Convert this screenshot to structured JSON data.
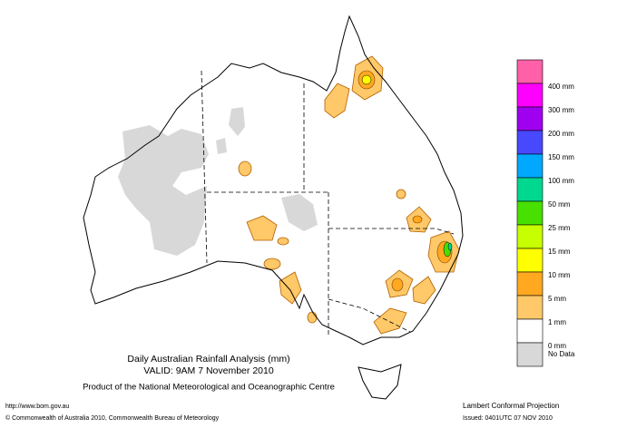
{
  "header": {
    "title": "Daily Australian Rainfall Analysis (mm)",
    "valid": "VALID: 9AM  7 November 2010",
    "product": "Product of the National Meteorological and Oceanographic Centre"
  },
  "legend": {
    "colors": [
      "#ff60a8",
      "#ff00ff",
      "#a000f0",
      "#4848ff",
      "#00a8ff",
      "#00d890",
      "#48e000",
      "#c8ff00",
      "#ffff00",
      "#ffa820",
      "#ffc868",
      "#ffffff",
      "#d8d8d8"
    ],
    "labels": [
      "400 mm",
      "300 mm",
      "200 mm",
      "150 mm",
      "100 mm",
      "50 mm",
      "25 mm",
      "15 mm",
      "10 mm",
      "5 mm",
      "1 mm",
      "0 mm",
      "No Data"
    ]
  },
  "footer": {
    "url": "http://www.bom.gov.au",
    "copyright": "© Commonwealth of Australia 2010, Commonwealth Bureau of Meteorology",
    "projection": "Lambert Conformal Projection",
    "issued": "Issued: 0401UTC 07 NOV 2010"
  }
}
